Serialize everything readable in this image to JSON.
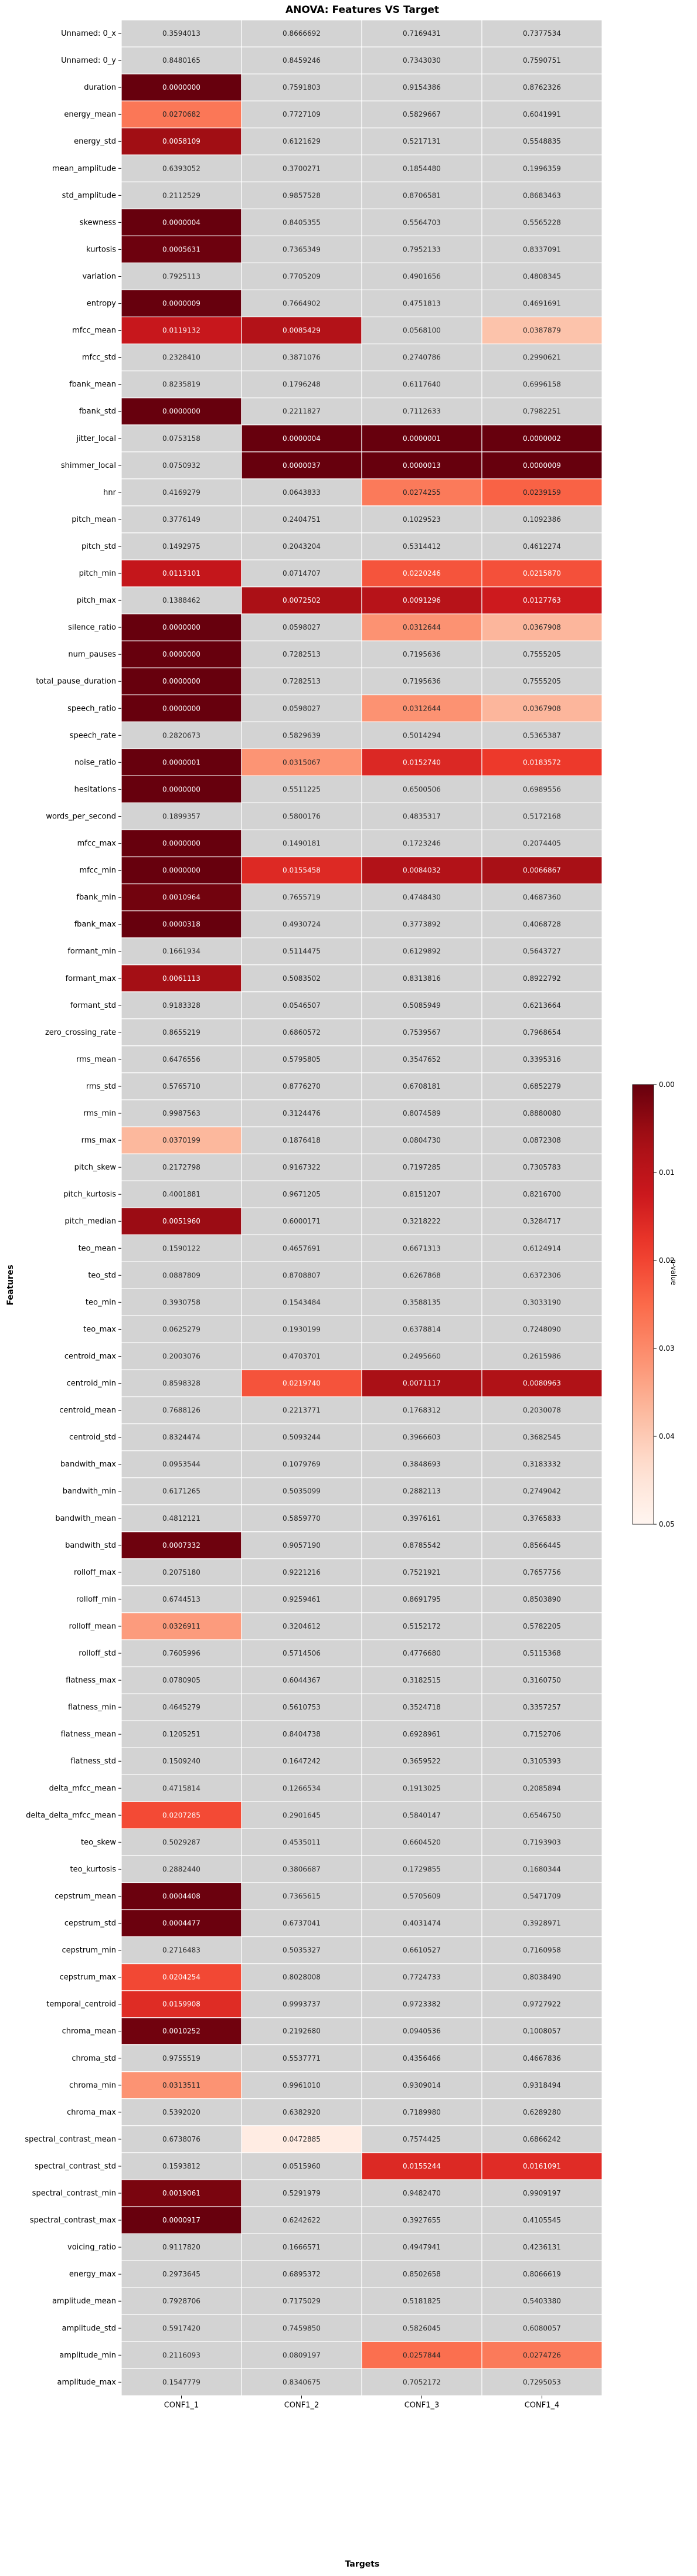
{
  "chart_data": {
    "type": "heatmap",
    "title": "ANOVA: Features VS Target",
    "xlabel": "Targets",
    "ylabel": "Features",
    "columns": [
      "CONF1_1",
      "CONF1_2",
      "CONF1_3",
      "CONF1_4"
    ],
    "rows": [
      {
        "name": "Unnamed: 0_x",
        "values": [
          "0.3594013",
          "0.8666692",
          "0.7169431",
          "0.7377534"
        ]
      },
      {
        "name": "Unnamed: 0_y",
        "values": [
          "0.8480165",
          "0.8459246",
          "0.7343030",
          "0.7590751"
        ]
      },
      {
        "name": "duration",
        "values": [
          "0.0000000",
          "0.7591803",
          "0.9154386",
          "0.8762326"
        ]
      },
      {
        "name": "energy_mean",
        "values": [
          "0.0270682",
          "0.7727109",
          "0.5829667",
          "0.6041991"
        ]
      },
      {
        "name": "energy_std",
        "values": [
          "0.0058109",
          "0.6121629",
          "0.5217131",
          "0.5548835"
        ]
      },
      {
        "name": "mean_amplitude",
        "values": [
          "0.6393052",
          "0.3700271",
          "0.1854480",
          "0.1996359"
        ]
      },
      {
        "name": "std_amplitude",
        "values": [
          "0.2112529",
          "0.9857528",
          "0.8706581",
          "0.8683463"
        ]
      },
      {
        "name": "skewness",
        "values": [
          "0.0000004",
          "0.8405355",
          "0.5564703",
          "0.5565228"
        ]
      },
      {
        "name": "kurtosis",
        "values": [
          "0.0005631",
          "0.7365349",
          "0.7952133",
          "0.8337091"
        ]
      },
      {
        "name": "variation",
        "values": [
          "0.7925113",
          "0.7705209",
          "0.4901656",
          "0.4808345"
        ]
      },
      {
        "name": "entropy",
        "values": [
          "0.0000009",
          "0.7664902",
          "0.4751813",
          "0.4691691"
        ]
      },
      {
        "name": "mfcc_mean",
        "values": [
          "0.0119132",
          "0.0085429",
          "0.0568100",
          "0.0387879"
        ]
      },
      {
        "name": "mfcc_std",
        "values": [
          "0.2328410",
          "0.3871076",
          "0.2740786",
          "0.2990621"
        ]
      },
      {
        "name": "fbank_mean",
        "values": [
          "0.8235819",
          "0.1796248",
          "0.6117640",
          "0.6996158"
        ]
      },
      {
        "name": "fbank_std",
        "values": [
          "0.0000000",
          "0.2211827",
          "0.7112633",
          "0.7982251"
        ]
      },
      {
        "name": "jitter_local",
        "values": [
          "0.0753158",
          "0.0000004",
          "0.0000001",
          "0.0000002"
        ]
      },
      {
        "name": "shimmer_local",
        "values": [
          "0.0750932",
          "0.0000037",
          "0.0000013",
          "0.0000009"
        ]
      },
      {
        "name": "hnr",
        "values": [
          "0.4169279",
          "0.0643833",
          "0.0274255",
          "0.0239159"
        ]
      },
      {
        "name": "pitch_mean",
        "values": [
          "0.3776149",
          "0.2404751",
          "0.1029523",
          "0.1092386"
        ]
      },
      {
        "name": "pitch_std",
        "values": [
          "0.1492975",
          "0.2043204",
          "0.5314412",
          "0.4612274"
        ]
      },
      {
        "name": "pitch_min",
        "values": [
          "0.0113101",
          "0.0714707",
          "0.0220246",
          "0.0215870"
        ]
      },
      {
        "name": "pitch_max",
        "values": [
          "0.1388462",
          "0.0072502",
          "0.0091296",
          "0.0127763"
        ]
      },
      {
        "name": "silence_ratio",
        "values": [
          "0.0000000",
          "0.0598027",
          "0.0312644",
          "0.0367908"
        ]
      },
      {
        "name": "num_pauses",
        "values": [
          "0.0000000",
          "0.7282513",
          "0.7195636",
          "0.7555205"
        ]
      },
      {
        "name": "total_pause_duration",
        "values": [
          "0.0000000",
          "0.7282513",
          "0.7195636",
          "0.7555205"
        ]
      },
      {
        "name": "speech_ratio",
        "values": [
          "0.0000000",
          "0.0598027",
          "0.0312644",
          "0.0367908"
        ]
      },
      {
        "name": "speech_rate",
        "values": [
          "0.2820673",
          "0.5829639",
          "0.5014294",
          "0.5365387"
        ]
      },
      {
        "name": "noise_ratio",
        "values": [
          "0.0000001",
          "0.0315067",
          "0.0152740",
          "0.0183572"
        ]
      },
      {
        "name": "hesitations",
        "values": [
          "0.0000000",
          "0.5511225",
          "0.6500506",
          "0.6989556"
        ]
      },
      {
        "name": "words_per_second",
        "values": [
          "0.1899357",
          "0.5800176",
          "0.4835317",
          "0.5172168"
        ]
      },
      {
        "name": "mfcc_max",
        "values": [
          "0.0000000",
          "0.1490181",
          "0.1723246",
          "0.2074405"
        ]
      },
      {
        "name": "mfcc_min",
        "values": [
          "0.0000000",
          "0.0155458",
          "0.0084032",
          "0.0066867"
        ]
      },
      {
        "name": "fbank_min",
        "values": [
          "0.0010964",
          "0.7655719",
          "0.4748430",
          "0.4687360"
        ]
      },
      {
        "name": "fbank_max",
        "values": [
          "0.0000318",
          "0.4930724",
          "0.3773892",
          "0.4068728"
        ]
      },
      {
        "name": "formant_min",
        "values": [
          "0.1661934",
          "0.5114475",
          "0.6129892",
          "0.5643727"
        ]
      },
      {
        "name": "formant_max",
        "values": [
          "0.0061113",
          "0.5083502",
          "0.8313816",
          "0.8922792"
        ]
      },
      {
        "name": "formant_std",
        "values": [
          "0.9183328",
          "0.0546507",
          "0.5085949",
          "0.6213664"
        ]
      },
      {
        "name": "zero_crossing_rate",
        "values": [
          "0.8655219",
          "0.6860572",
          "0.7539567",
          "0.7968654"
        ]
      },
      {
        "name": "rms_mean",
        "values": [
          "0.6476556",
          "0.5795805",
          "0.3547652",
          "0.3395316"
        ]
      },
      {
        "name": "rms_std",
        "values": [
          "0.5765710",
          "0.8776270",
          "0.6708181",
          "0.6852279"
        ]
      },
      {
        "name": "rms_min",
        "values": [
          "0.9987563",
          "0.3124476",
          "0.8074589",
          "0.8880080"
        ]
      },
      {
        "name": "rms_max",
        "values": [
          "0.0370199",
          "0.1876418",
          "0.0804730",
          "0.0872308"
        ]
      },
      {
        "name": "pitch_skew",
        "values": [
          "0.2172798",
          "0.9167322",
          "0.7197285",
          "0.7305783"
        ]
      },
      {
        "name": "pitch_kurtosis",
        "values": [
          "0.4001881",
          "0.9671205",
          "0.8151207",
          "0.8216700"
        ]
      },
      {
        "name": "pitch_median",
        "values": [
          "0.0051960",
          "0.6000171",
          "0.3218222",
          "0.3284717"
        ]
      },
      {
        "name": "teo_mean",
        "values": [
          "0.1590122",
          "0.4657691",
          "0.6671313",
          "0.6124914"
        ]
      },
      {
        "name": "teo_std",
        "values": [
          "0.0887809",
          "0.8708807",
          "0.6267868",
          "0.6372306"
        ]
      },
      {
        "name": "teo_min",
        "values": [
          "0.3930758",
          "0.1543484",
          "0.3588135",
          "0.3033190"
        ]
      },
      {
        "name": "teo_max",
        "values": [
          "0.0625279",
          "0.1930199",
          "0.6378814",
          "0.7248090"
        ]
      },
      {
        "name": "centroid_max",
        "values": [
          "0.2003076",
          "0.4703701",
          "0.2495660",
          "0.2615986"
        ]
      },
      {
        "name": "centroid_min",
        "values": [
          "0.8598328",
          "0.0219740",
          "0.0071117",
          "0.0080963"
        ]
      },
      {
        "name": "centroid_mean",
        "values": [
          "0.7688126",
          "0.2213771",
          "0.1768312",
          "0.2030078"
        ]
      },
      {
        "name": "centroid_std",
        "values": [
          "0.8324474",
          "0.5093244",
          "0.3966603",
          "0.3682545"
        ]
      },
      {
        "name": "bandwith_max",
        "values": [
          "0.0953544",
          "0.1079769",
          "0.3848693",
          "0.3183332"
        ]
      },
      {
        "name": "bandwith_min",
        "values": [
          "0.6171265",
          "0.5035099",
          "0.2882113",
          "0.2749042"
        ]
      },
      {
        "name": "bandwith_mean",
        "values": [
          "0.4812121",
          "0.5859770",
          "0.3976161",
          "0.3765833"
        ]
      },
      {
        "name": "bandwith_std",
        "values": [
          "0.0007332",
          "0.9057190",
          "0.8785542",
          "0.8566445"
        ]
      },
      {
        "name": "rolloff_max",
        "values": [
          "0.2075180",
          "0.9221216",
          "0.7521921",
          "0.7657756"
        ]
      },
      {
        "name": "rolloff_min",
        "values": [
          "0.6744513",
          "0.9259461",
          "0.8691795",
          "0.8503890"
        ]
      },
      {
        "name": "rolloff_mean",
        "values": [
          "0.0326911",
          "0.3204612",
          "0.5152172",
          "0.5782205"
        ]
      },
      {
        "name": "rolloff_std",
        "values": [
          "0.7605996",
          "0.5714506",
          "0.4776680",
          "0.5115368"
        ]
      },
      {
        "name": "flatness_max",
        "values": [
          "0.0780905",
          "0.6044367",
          "0.3182515",
          "0.3160750"
        ]
      },
      {
        "name": "flatness_min",
        "values": [
          "0.4645279",
          "0.5610753",
          "0.3524718",
          "0.3357257"
        ]
      },
      {
        "name": "flatness_mean",
        "values": [
          "0.1205251",
          "0.8404738",
          "0.6928961",
          "0.7152706"
        ]
      },
      {
        "name": "flatness_std",
        "values": [
          "0.1509240",
          "0.1647242",
          "0.3659522",
          "0.3105393"
        ]
      },
      {
        "name": "delta_mfcc_mean",
        "values": [
          "0.4715814",
          "0.1266534",
          "0.1913025",
          "0.2085894"
        ]
      },
      {
        "name": "delta_delta_mfcc_mean",
        "values": [
          "0.0207285",
          "0.2901645",
          "0.5840147",
          "0.6546750"
        ]
      },
      {
        "name": "teo_skew",
        "values": [
          "0.5029287",
          "0.4535011",
          "0.6604520",
          "0.7193903"
        ]
      },
      {
        "name": "teo_kurtosis",
        "values": [
          "0.2882440",
          "0.3806687",
          "0.1729855",
          "0.1680344"
        ]
      },
      {
        "name": "cepstrum_mean",
        "values": [
          "0.0004408",
          "0.7365615",
          "0.5705609",
          "0.5471709"
        ]
      },
      {
        "name": "cepstrum_std",
        "values": [
          "0.0004477",
          "0.6737041",
          "0.4031474",
          "0.3928971"
        ]
      },
      {
        "name": "cepstrum_min",
        "values": [
          "0.2716483",
          "0.5035327",
          "0.6610527",
          "0.7160958"
        ]
      },
      {
        "name": "cepstrum_max",
        "values": [
          "0.0204254",
          "0.8028008",
          "0.7724733",
          "0.8038490"
        ]
      },
      {
        "name": "temporal_centroid",
        "values": [
          "0.0159908",
          "0.9993737",
          "0.9723382",
          "0.9727922"
        ]
      },
      {
        "name": "chroma_mean",
        "values": [
          "0.0010252",
          "0.2192680",
          "0.0940536",
          "0.1008057"
        ]
      },
      {
        "name": "chroma_std",
        "values": [
          "0.9755519",
          "0.5537771",
          "0.4356466",
          "0.4667836"
        ]
      },
      {
        "name": "chroma_min",
        "values": [
          "0.0313511",
          "0.9961010",
          "0.9309014",
          "0.9318494"
        ]
      },
      {
        "name": "chroma_max",
        "values": [
          "0.5392020",
          "0.6382920",
          "0.7189980",
          "0.6289280"
        ]
      },
      {
        "name": "spectral_contrast_mean",
        "values": [
          "0.6738076",
          "0.0472885",
          "0.7574425",
          "0.6866242"
        ]
      },
      {
        "name": "spectral_contrast_std",
        "values": [
          "0.1593812",
          "0.0515960",
          "0.0155244",
          "0.0161091"
        ]
      },
      {
        "name": "spectral_contrast_min",
        "values": [
          "0.0019061",
          "0.5291979",
          "0.9482470",
          "0.9909197"
        ]
      },
      {
        "name": "spectral_contrast_max",
        "values": [
          "0.0000917",
          "0.6242622",
          "0.3927655",
          "0.4105545"
        ]
      },
      {
        "name": "voicing_ratio",
        "values": [
          "0.9117820",
          "0.1666571",
          "0.4947941",
          "0.4236131"
        ]
      },
      {
        "name": "energy_max",
        "values": [
          "0.2973645",
          "0.6895372",
          "0.8502658",
          "0.8066619"
        ]
      },
      {
        "name": "amplitude_mean",
        "values": [
          "0.7928706",
          "0.7175029",
          "0.5181825",
          "0.5403380"
        ]
      },
      {
        "name": "amplitude_std",
        "values": [
          "0.5917420",
          "0.7459850",
          "0.5826045",
          "0.6080057"
        ]
      },
      {
        "name": "amplitude_min",
        "values": [
          "0.2116093",
          "0.0809197",
          "0.0257844",
          "0.0274726"
        ]
      },
      {
        "name": "amplitude_max",
        "values": [
          "0.1547779",
          "0.8340675",
          "0.7052172",
          "0.7295053"
        ]
      }
    ],
    "color_scale": {
      "label": "p-value",
      "vmin": 0.0,
      "vmax": 0.05,
      "ticks": [
        "0.00",
        "0.01",
        "0.02",
        "0.03",
        "0.04",
        "0.05"
      ],
      "low_color": "#67000d",
      "high_color": "#fff5f0",
      "above_max_color": "#d3d3d3"
    },
    "grid": true,
    "legend": "right"
  }
}
